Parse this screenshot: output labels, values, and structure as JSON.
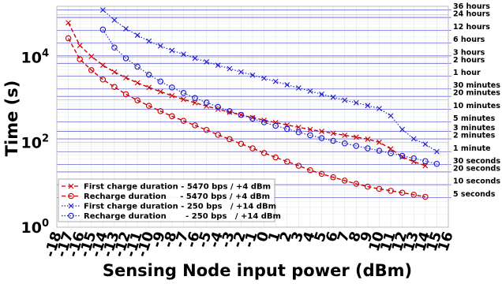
{
  "chart_data": {
    "type": "line",
    "xlabel": "Sensing Node input power (dBm)",
    "ylabel": "Time (s)",
    "xlim": [
      -18,
      16
    ],
    "ylog": true,
    "ylim_log10": [
      0,
      5.2
    ],
    "grid": true,
    "legend_position": "bottom-left",
    "x_ticks": [
      -18,
      -17,
      -16,
      -15,
      -14,
      -13,
      -12,
      -11,
      -10,
      -9,
      -8,
      -7,
      -6,
      -5,
      -4,
      -3,
      -2,
      -1,
      0,
      1,
      2,
      3,
      4,
      5,
      6,
      7,
      8,
      9,
      10,
      11,
      12,
      13,
      14,
      15,
      16
    ],
    "x_tick_labels": [
      "-18",
      "-17",
      "-16",
      "-15",
      "-14",
      "-13",
      "-12",
      "-11",
      "-10",
      "-9",
      "-8",
      "-7",
      "-6",
      "-5",
      "-4",
      "-3",
      "-2",
      "-1",
      "0",
      "1",
      "2",
      "3",
      "4",
      "5",
      "6",
      "7",
      "8",
      "9",
      "10",
      "11",
      "12",
      "13",
      "14",
      "15",
      "16"
    ],
    "y_ticks": [
      {
        "value": 1,
        "base": "10",
        "exp": "0"
      },
      {
        "value": 100,
        "base": "10",
        "exp": "2"
      },
      {
        "value": 10000,
        "base": "10",
        "exp": "4"
      }
    ],
    "time_reference_lines": [
      {
        "label": "5 seconds",
        "seconds": 5
      },
      {
        "label": "10 seconds",
        "seconds": 10
      },
      {
        "label": "20 seconds",
        "seconds": 20
      },
      {
        "label": "30 seconds",
        "seconds": 30
      },
      {
        "label": "1 minute",
        "seconds": 60
      },
      {
        "label": "2 minutes",
        "seconds": 120
      },
      {
        "label": "3 minutes",
        "seconds": 180
      },
      {
        "label": "5 minutes",
        "seconds": 300
      },
      {
        "label": "10 minutes",
        "seconds": 600
      },
      {
        "label": "20 minutes",
        "seconds": 1200
      },
      {
        "label": "30 minutes",
        "seconds": 1800
      },
      {
        "label": "1 hour",
        "seconds": 3600
      },
      {
        "label": "2 hours",
        "seconds": 7200
      },
      {
        "label": "3 hours",
        "seconds": 10800
      },
      {
        "label": "6 hours",
        "seconds": 21600
      },
      {
        "label": "12 hours",
        "seconds": 43200
      },
      {
        "label": "24 hours",
        "seconds": 86400
      },
      {
        "label": "36 hours",
        "seconds": 129600
      }
    ],
    "series": [
      {
        "name": "First charge duration - 5470 bps / +4 dBm",
        "color": "#cc0000",
        "line": "dashed",
        "marker": "x",
        "x": [
          -17,
          -16,
          -15,
          -14,
          -13,
          -12,
          -11,
          -10,
          -9,
          -8,
          -7,
          -6,
          -5,
          -4,
          -3,
          -2,
          -1,
          0,
          1,
          2,
          3,
          4,
          5,
          6,
          7,
          8,
          9,
          10,
          11,
          12,
          13,
          14
        ],
        "y": [
          65000,
          19000,
          10500,
          6500,
          4500,
          3300,
          2500,
          1950,
          1550,
          1250,
          1020,
          850,
          710,
          600,
          510,
          440,
          380,
          330,
          290,
          255,
          225,
          200,
          180,
          162,
          146,
          132,
          118,
          100,
          70,
          45,
          35,
          28
        ]
      },
      {
        "name": "Recharge duration     - 5470 bps / +4 dBm",
        "color": "#cc0000",
        "line": "dashed",
        "marker": "o",
        "x": [
          -17,
          -16,
          -15,
          -14,
          -13,
          -12,
          -11,
          -10,
          -9,
          -8,
          -7,
          -6,
          -5,
          -4,
          -3,
          -2,
          -1,
          0,
          1,
          2,
          3,
          4,
          5,
          6,
          7,
          8,
          9,
          10,
          11,
          12,
          13,
          14
        ],
        "y": [
          28000,
          9000,
          5000,
          3000,
          2000,
          1350,
          970,
          720,
          540,
          410,
          320,
          250,
          195,
          150,
          118,
          92,
          72,
          56,
          44,
          35,
          28,
          22,
          18,
          15,
          12.5,
          10.5,
          9,
          8,
          7.2,
          6.5,
          5.8,
          5.2
        ]
      },
      {
        "name": "First charge duration - 250 bps   / +14 dBm",
        "color": "#1a1acc",
        "line": "dotted",
        "marker": "x",
        "x": [
          -14,
          -13,
          -12,
          -11,
          -10,
          -9,
          -8,
          -7,
          -6,
          -5,
          -4,
          -3,
          -2,
          -1,
          0,
          1,
          2,
          3,
          4,
          5,
          6,
          7,
          8,
          9,
          10,
          11,
          12,
          13,
          14,
          15
        ],
        "y": [
          130000,
          75000,
          47000,
          33000,
          24000,
          18500,
          14500,
          11800,
          9500,
          7800,
          6500,
          5400,
          4500,
          3800,
          3200,
          2700,
          2250,
          1900,
          1600,
          1350,
          1150,
          980,
          850,
          730,
          620,
          420,
          200,
          120,
          90,
          60
        ]
      },
      {
        "name": "Recharge duration       - 250 bps   / +14 dBm",
        "color": "#1a1acc",
        "line": "dotted",
        "marker": "o",
        "x": [
          -14,
          -13,
          -12,
          -11,
          -10,
          -9,
          -8,
          -7,
          -6,
          -5,
          -4,
          -3,
          -2,
          -1,
          0,
          1,
          2,
          3,
          4,
          5,
          6,
          7,
          8,
          9,
          10,
          11,
          12,
          13,
          14,
          15
        ],
        "y": [
          45000,
          17000,
          9500,
          6000,
          3900,
          2700,
          1950,
          1450,
          1100,
          860,
          680,
          540,
          440,
          360,
          295,
          245,
          205,
          172,
          146,
          125,
          108,
          94,
          82,
          72,
          63,
          55,
          48,
          42,
          36,
          31
        ]
      }
    ]
  }
}
